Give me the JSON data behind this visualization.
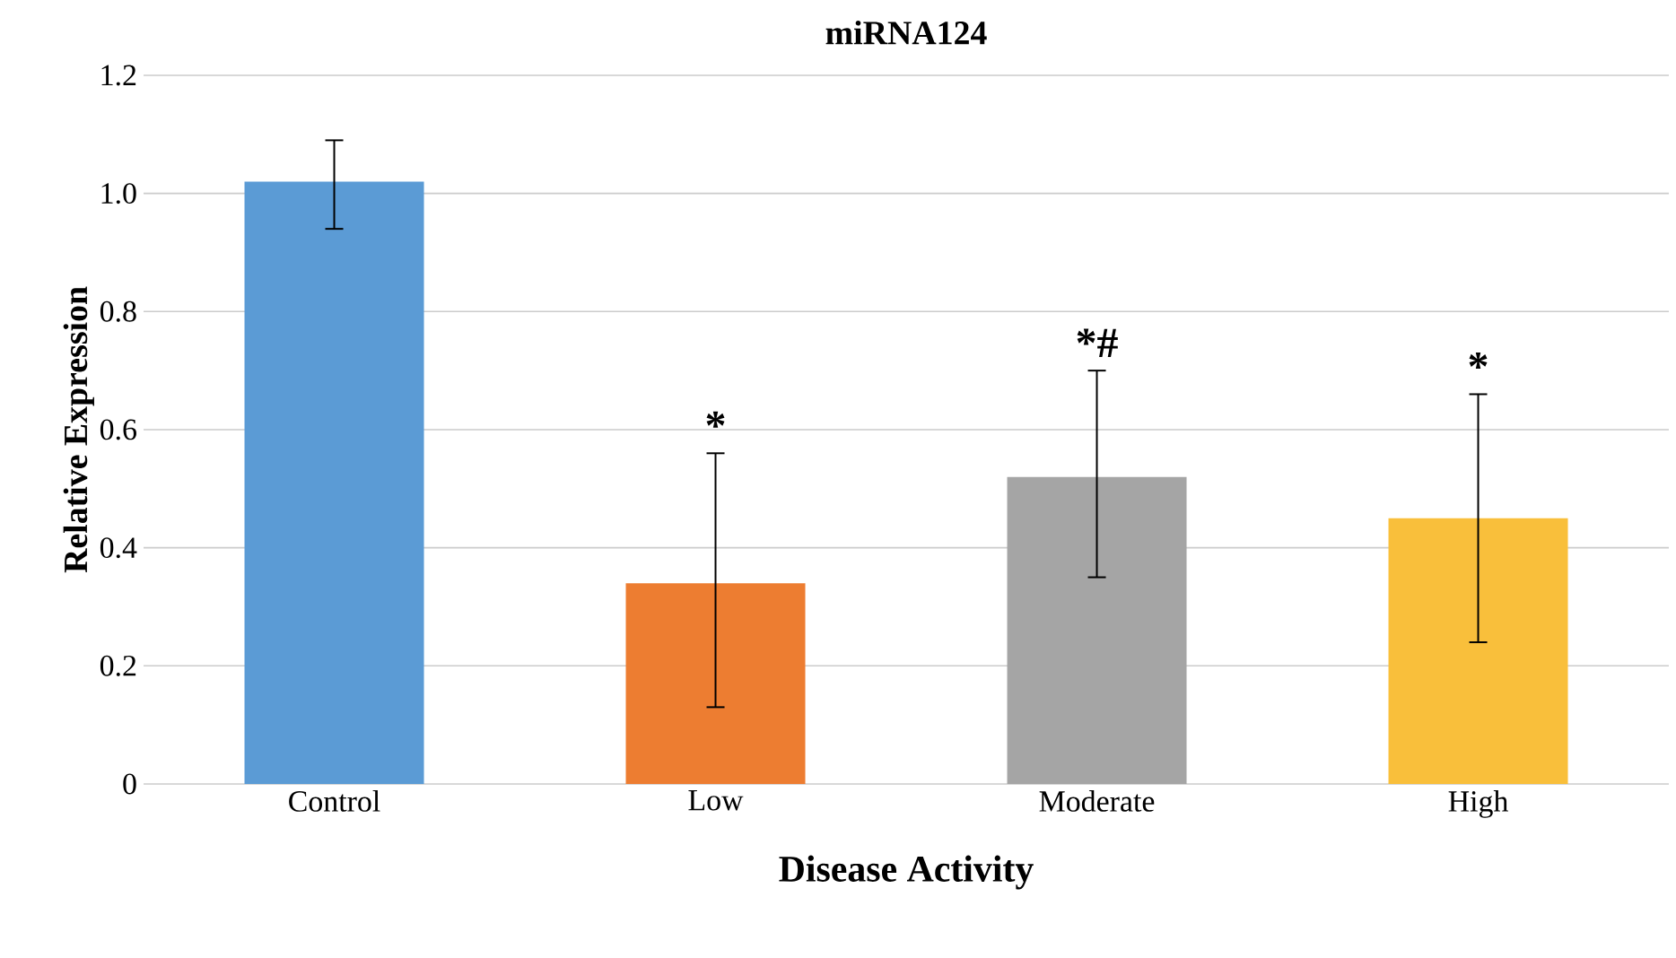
{
  "chart_data": {
    "type": "bar",
    "title": "miRNA124",
    "xlabel": "Disease Activity",
    "ylabel": "Relative Expression",
    "categories": [
      "Control",
      "Low",
      "Moderate",
      "High"
    ],
    "values": [
      1.02,
      0.34,
      0.52,
      0.45
    ],
    "colors": [
      "#5b9bd5",
      "#ed7d31",
      "#a5a5a5",
      "#f9bf3b"
    ],
    "errors": [
      [
        0.94,
        1.09
      ],
      [
        0.13,
        0.56
      ],
      [
        0.35,
        0.7
      ],
      [
        0.24,
        0.66
      ]
    ],
    "annotations": [
      {
        "text": "*",
        "x": "Low",
        "y": 0.56
      },
      {
        "text": "*#",
        "x": "Moderate",
        "y": 0.7
      },
      {
        "text": "*",
        "x": "High",
        "y": 0.66
      }
    ],
    "ylim": [
      0,
      1.2
    ],
    "yticks": [
      {
        "value": 0,
        "label": "0"
      },
      {
        "value": 0.2,
        "label": "0.2"
      },
      {
        "value": 0.4,
        "label": "0.4"
      },
      {
        "value": 0.6,
        "label": "0.6"
      },
      {
        "value": 0.8,
        "label": "0.8"
      },
      {
        "value": 1.0,
        "label": "1.0"
      },
      {
        "value": 1.2,
        "label": "1.2"
      }
    ],
    "grid": "y"
  }
}
